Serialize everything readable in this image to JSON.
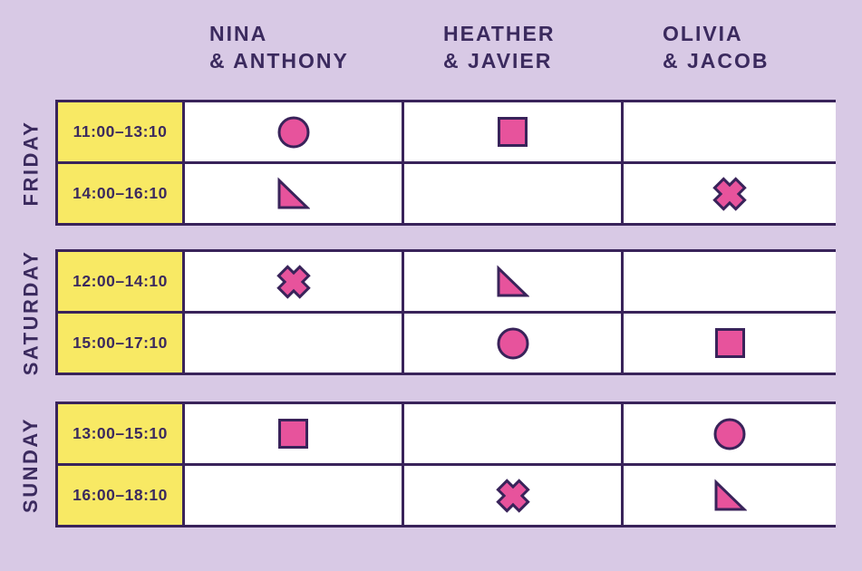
{
  "palette": {
    "background": "#d8c9e5",
    "cell_bg": "#ffffff",
    "time_bg": "#f8e964",
    "border": "#39235a",
    "text": "#3b2a5e",
    "shape_fill": "#e7539c",
    "shape_stroke": "#39235a"
  },
  "header": {
    "columns": [
      {
        "line1": "NINA",
        "line2": "& ANTHONY"
      },
      {
        "line1": "HEATHER",
        "line2": "& JAVIER"
      },
      {
        "line1": "OLIVIA",
        "line2": "& JACOB"
      }
    ]
  },
  "days": [
    {
      "label": "FRIDAY",
      "rows": [
        {
          "time": "11:00–13:10",
          "cells": [
            "circle",
            "square",
            "none"
          ]
        },
        {
          "time": "14:00–16:10",
          "cells": [
            "triangle",
            "none",
            "cross"
          ]
        }
      ]
    },
    {
      "label": "SATURDAY",
      "rows": [
        {
          "time": "12:00–14:10",
          "cells": [
            "cross",
            "triangle",
            "none"
          ]
        },
        {
          "time": "15:00–17:10",
          "cells": [
            "none",
            "circle",
            "square"
          ]
        }
      ]
    },
    {
      "label": "SUNDAY",
      "rows": [
        {
          "time": "13:00–15:10",
          "cells": [
            "square",
            "none",
            "circle"
          ]
        },
        {
          "time": "16:00–18:10",
          "cells": [
            "none",
            "cross",
            "triangle"
          ]
        }
      ]
    }
  ]
}
